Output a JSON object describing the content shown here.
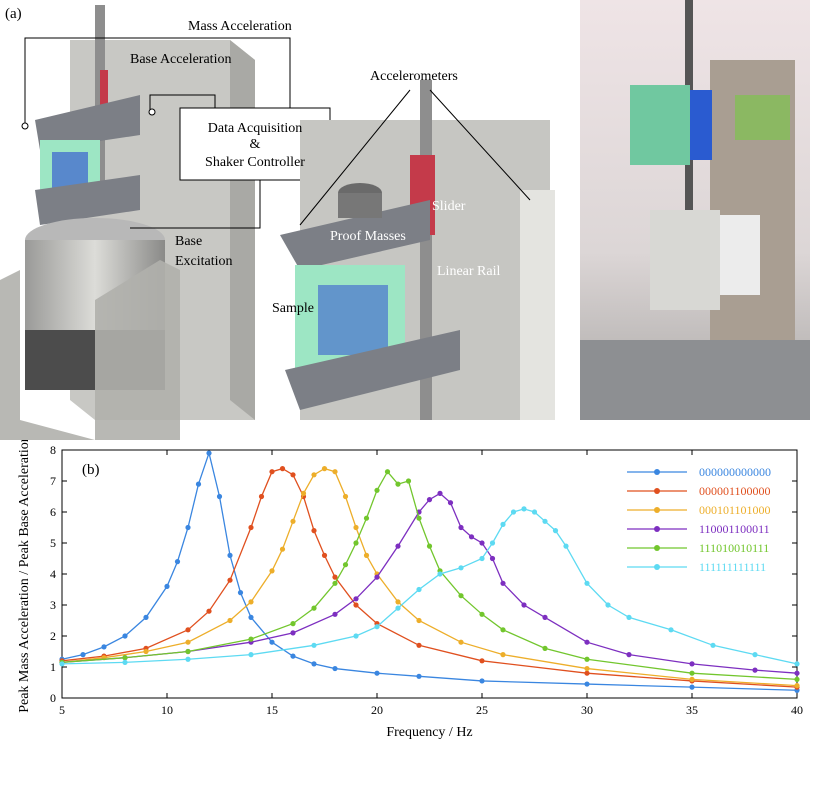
{
  "figure_a": {
    "panel_label": "(a)",
    "labels": {
      "mass_acceleration": "Mass Acceleration",
      "base_acceleration": "Base Acceleration",
      "data_acquisition": "Data Acquisition",
      "ampersand": "&",
      "shaker_controller": "Shaker Controller",
      "base": "Base",
      "excitation": "Excitation",
      "accelerometers": "Accelerometers",
      "proof_masses": "Proof Masses",
      "slider": "Slider",
      "linear_rail": "Linear Rail",
      "sample": "Sample"
    }
  },
  "chart_data": {
    "type": "line",
    "panel_label": "(b)",
    "x_label": "Frequency / Hz",
    "y_label": "Peak Mass Acceleration / Peak Base Acceleration",
    "xlim": [
      5,
      40
    ],
    "ylim": [
      0,
      8
    ],
    "xticks": [
      5,
      10,
      15,
      20,
      25,
      30,
      35,
      40
    ],
    "yticks": [
      0,
      1,
      2,
      3,
      4,
      5,
      6,
      7,
      8
    ],
    "legend": "upper right",
    "series": [
      {
        "name": "000000000000",
        "color": "#3a86e0",
        "x": [
          5,
          6,
          7,
          8,
          9,
          10,
          10.5,
          11,
          11.5,
          12,
          12.5,
          13,
          13.5,
          14,
          15,
          16,
          17,
          18,
          20,
          22,
          25,
          30,
          35,
          40
        ],
        "values": [
          1.25,
          1.4,
          1.65,
          2.0,
          2.6,
          3.6,
          4.4,
          5.5,
          6.9,
          7.9,
          6.5,
          4.6,
          3.4,
          2.6,
          1.8,
          1.35,
          1.1,
          0.95,
          0.8,
          0.7,
          0.55,
          0.45,
          0.35,
          0.25
        ]
      },
      {
        "name": "000001100000",
        "color": "#e0501f",
        "x": [
          5,
          7,
          9,
          11,
          12,
          13,
          14,
          14.5,
          15,
          15.5,
          16,
          16.5,
          17,
          17.5,
          18,
          19,
          20,
          22,
          25,
          30,
          35,
          40
        ],
        "values": [
          1.2,
          1.35,
          1.6,
          2.2,
          2.8,
          3.8,
          5.5,
          6.5,
          7.3,
          7.4,
          7.2,
          6.5,
          5.4,
          4.6,
          3.9,
          3.0,
          2.4,
          1.7,
          1.2,
          0.8,
          0.55,
          0.35
        ]
      },
      {
        "name": "000101101000",
        "color": "#edae2a",
        "x": [
          5,
          7,
          9,
          11,
          13,
          14,
          15,
          15.5,
          16,
          16.5,
          17,
          17.5,
          18,
          18.5,
          19,
          19.5,
          20,
          21,
          22,
          24,
          26,
          30,
          35,
          40
        ],
        "values": [
          1.15,
          1.3,
          1.5,
          1.8,
          2.5,
          3.1,
          4.1,
          4.8,
          5.7,
          6.6,
          7.2,
          7.4,
          7.3,
          6.5,
          5.5,
          4.6,
          4.0,
          3.1,
          2.5,
          1.8,
          1.4,
          0.95,
          0.6,
          0.4
        ]
      },
      {
        "name": "110001100011",
        "color": "#7d2fc0",
        "x": [
          5,
          8,
          11,
          14,
          16,
          18,
          19,
          20,
          21,
          22,
          22.5,
          23,
          23.5,
          24,
          24.5,
          25,
          25.5,
          26,
          27,
          28,
          30,
          32,
          35,
          38,
          40
        ],
        "values": [
          1.15,
          1.3,
          1.5,
          1.8,
          2.1,
          2.7,
          3.2,
          3.9,
          4.9,
          6.0,
          6.4,
          6.6,
          6.3,
          5.5,
          5.2,
          5.0,
          4.5,
          3.7,
          3.0,
          2.6,
          1.8,
          1.4,
          1.1,
          0.9,
          0.8
        ]
      },
      {
        "name": "111010010111",
        "color": "#72c62d",
        "x": [
          5,
          8,
          11,
          14,
          16,
          17,
          18,
          18.5,
          19,
          19.5,
          20,
          20.5,
          21,
          21.5,
          22,
          22.5,
          23,
          24,
          25,
          26,
          28,
          30,
          35,
          40
        ],
        "values": [
          1.15,
          1.3,
          1.5,
          1.9,
          2.4,
          2.9,
          3.7,
          4.3,
          5.0,
          5.8,
          6.7,
          7.3,
          6.9,
          7.0,
          5.8,
          4.9,
          4.1,
          3.3,
          2.7,
          2.2,
          1.6,
          1.25,
          0.8,
          0.6
        ]
      },
      {
        "name": "111111111111",
        "color": "#5ddaf2",
        "x": [
          5,
          8,
          11,
          14,
          17,
          19,
          20,
          21,
          22,
          23,
          24,
          25,
          25.5,
          26,
          26.5,
          27,
          27.5,
          28,
          28.5,
          29,
          30,
          31,
          32,
          34,
          36,
          38,
          40
        ],
        "values": [
          1.1,
          1.15,
          1.25,
          1.4,
          1.7,
          2.0,
          2.3,
          2.9,
          3.5,
          4.0,
          4.2,
          4.5,
          5.0,
          5.6,
          6.0,
          6.1,
          6.0,
          5.7,
          5.4,
          4.9,
          3.7,
          3.0,
          2.6,
          2.2,
          1.7,
          1.4,
          1.1
        ]
      }
    ]
  }
}
